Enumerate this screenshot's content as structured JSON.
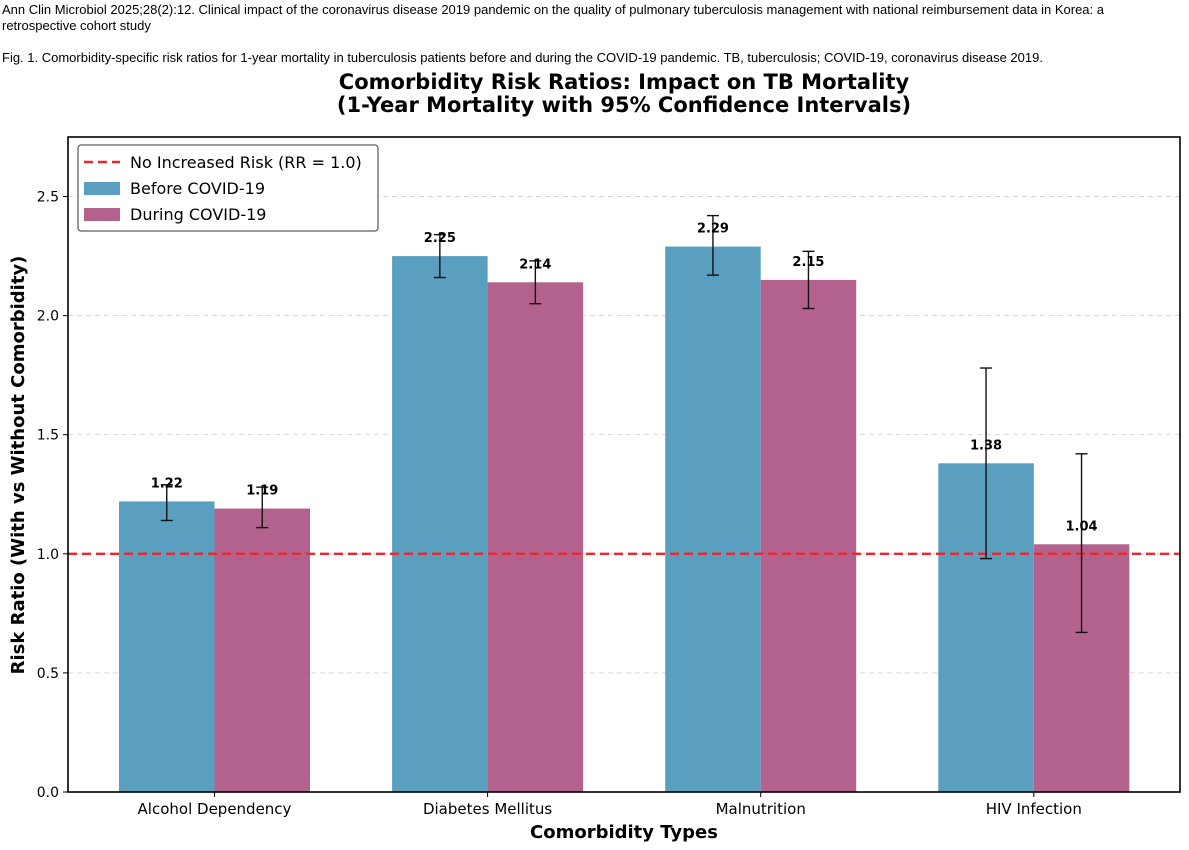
{
  "citation": "Ann Clin Microbiol 2025;28(2):12. Clinical impact of the coronavirus disease 2019 pandemic on the quality of pulmonary tuberculosis management with national reimbursement data in Korea: a retrospective cohort study",
  "caption": "Fig. 1. Comorbidity-specific risk ratios for 1-year mortality in tuberculosis patients before and during the COVID-19 pandemic. TB, tuberculosis; COVID-19, coronavirus disease 2019.",
  "chart_data": {
    "type": "bar",
    "title_line1": "Comorbidity Risk Ratios: Impact on TB Mortality",
    "title_line2": "(1-Year Mortality with 95% Confidence Intervals)",
    "xlabel": "Comorbidity Types",
    "ylabel": "Risk Ratio (With vs Without Comorbidity)",
    "ylim": [
      0,
      2.75
    ],
    "yticks": [
      0.0,
      0.5,
      1.0,
      1.5,
      2.0,
      2.5
    ],
    "ytick_labels": [
      "0.0",
      "0.5",
      "1.0",
      "1.5",
      "2.0",
      "2.5"
    ],
    "grid": "y dashed",
    "legend_position": "top-left",
    "categories": [
      "Alcohol Dependency",
      "Diabetes Mellitus",
      "Malnutrition",
      "HIV Infection"
    ],
    "reference_line": {
      "name": "No Increased Risk (RR = 1.0)",
      "value": 1.0,
      "color": "#e8282b"
    },
    "series": [
      {
        "name": "Before COVID-19",
        "color": "#5a9fbf",
        "values": [
          1.22,
          2.25,
          2.29,
          1.38
        ],
        "value_labels": [
          "1.22",
          "2.25",
          "2.29",
          "1.38"
        ],
        "ci_low": [
          1.14,
          2.16,
          2.17,
          0.98
        ],
        "ci_high": [
          1.29,
          2.34,
          2.42,
          1.78
        ]
      },
      {
        "name": "During COVID-19",
        "color": "#b2628c",
        "values": [
          1.19,
          2.14,
          2.15,
          1.04
        ],
        "value_labels": [
          "1.19",
          "2.14",
          "2.15",
          "1.04"
        ],
        "ci_low": [
          1.11,
          2.05,
          2.03,
          0.67
        ],
        "ci_high": [
          1.28,
          2.23,
          2.27,
          1.42
        ]
      }
    ]
  }
}
